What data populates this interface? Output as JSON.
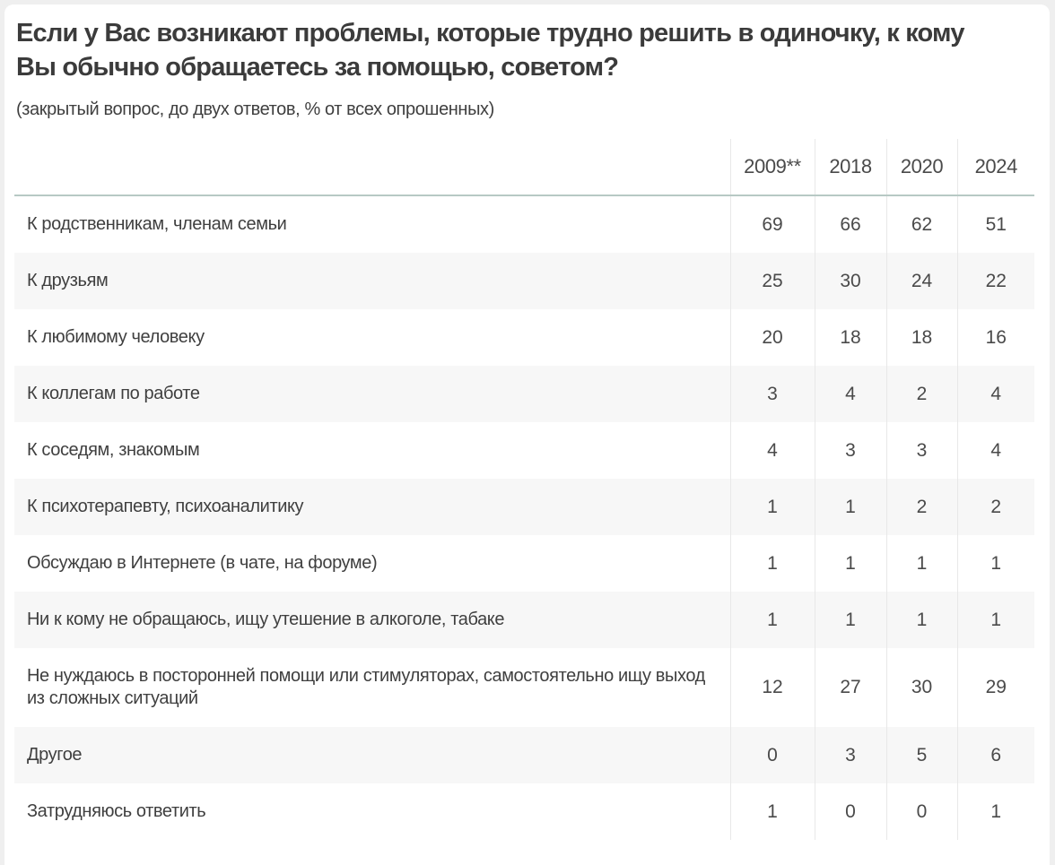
{
  "page": {
    "title": "Если у Вас возникают проблемы, которые трудно решить в одиночку, к кому\nВы обычно обращаетесь за помощью, советом?",
    "subtitle": "(закрытый вопрос, до двух ответов, % от всех опрошенных)"
  },
  "colors": {
    "accent_line": "#b7c9c4",
    "grid_line": "#e8e8e8",
    "row_alt_background": "#f7f7f7",
    "text": "#3f3f3f"
  },
  "chart_data": {
    "type": "table",
    "title": "Если у Вас возникают проблемы, которые трудно решить в одиночку, к кому Вы обычно обращаетесь за помощью, советом?",
    "subtitle": "(закрытый вопрос, до двух ответов, % от всех опрошенных)",
    "columns": [
      "2009**",
      "2018",
      "2020",
      "2024"
    ],
    "rows": [
      {
        "label": "К родственникам, членам семьи",
        "values": [
          69,
          66,
          62,
          51
        ]
      },
      {
        "label": "К друзьям",
        "values": [
          25,
          30,
          24,
          22
        ]
      },
      {
        "label": "К любимому человеку",
        "values": [
          20,
          18,
          18,
          16
        ]
      },
      {
        "label": "К коллегам по работе",
        "values": [
          3,
          4,
          2,
          4
        ]
      },
      {
        "label": "К соседям, знакомым",
        "values": [
          4,
          3,
          3,
          4
        ]
      },
      {
        "label": "К психотерапевту, психоаналитику",
        "values": [
          1,
          1,
          2,
          2
        ]
      },
      {
        "label": "Обсуждаю в Интернете (в чате, на форуме)",
        "values": [
          1,
          1,
          1,
          1
        ]
      },
      {
        "label": "Ни к кому не обращаюсь, ищу утешение в алкоголе, табаке",
        "values": [
          1,
          1,
          1,
          1
        ]
      },
      {
        "label": "Не нуждаюсь в посторонней помощи или стимуляторах, самостоятельно ищу выход из сложных ситуаций",
        "values": [
          12,
          27,
          30,
          29
        ]
      },
      {
        "label": "Другое",
        "values": [
          0,
          3,
          5,
          6
        ]
      },
      {
        "label": "Затрудняюсь ответить",
        "values": [
          1,
          0,
          0,
          1
        ]
      }
    ]
  }
}
